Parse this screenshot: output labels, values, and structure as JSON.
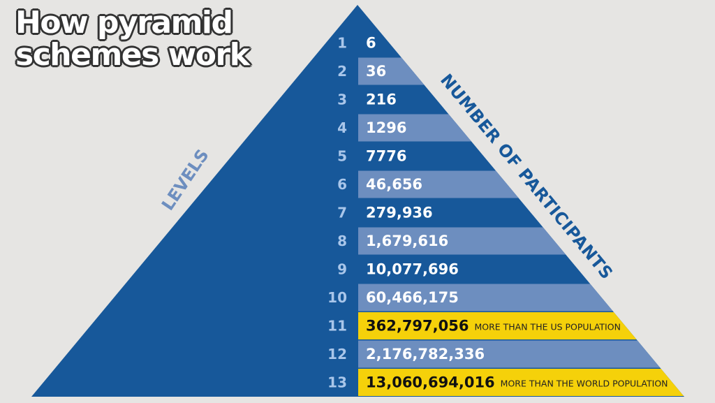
{
  "title": [
    "How pyramid",
    "schemes work"
  ],
  "axis_labels": {
    "levels": "LEVELS",
    "participants": "NUMBER OF PARTICIPANTS"
  },
  "colors": {
    "dark_blue": "#17589a",
    "light_blue": "#6d8ebf",
    "highlight": "#f5d10a",
    "background": "#e6e5e3"
  },
  "rows": [
    {
      "level": "1",
      "value": "6",
      "note": ""
    },
    {
      "level": "2",
      "value": "36",
      "note": ""
    },
    {
      "level": "3",
      "value": "216",
      "note": ""
    },
    {
      "level": "4",
      "value": "1296",
      "note": ""
    },
    {
      "level": "5",
      "value": "7776",
      "note": ""
    },
    {
      "level": "6",
      "value": "46,656",
      "note": ""
    },
    {
      "level": "7",
      "value": "279,936",
      "note": ""
    },
    {
      "level": "8",
      "value": "1,679,616",
      "note": ""
    },
    {
      "level": "9",
      "value": "10,077,696",
      "note": ""
    },
    {
      "level": "10",
      "value": "60,466,175",
      "note": ""
    },
    {
      "level": "11",
      "value": "362,797,056",
      "note": "MORE THAN THE US POPULATION",
      "highlight": true
    },
    {
      "level": "12",
      "value": "2,176,782,336",
      "note": ""
    },
    {
      "level": "13",
      "value": "13,060,694,016",
      "note": "MORE THAN THE WORLD POPULATION",
      "highlight": true
    }
  ]
}
